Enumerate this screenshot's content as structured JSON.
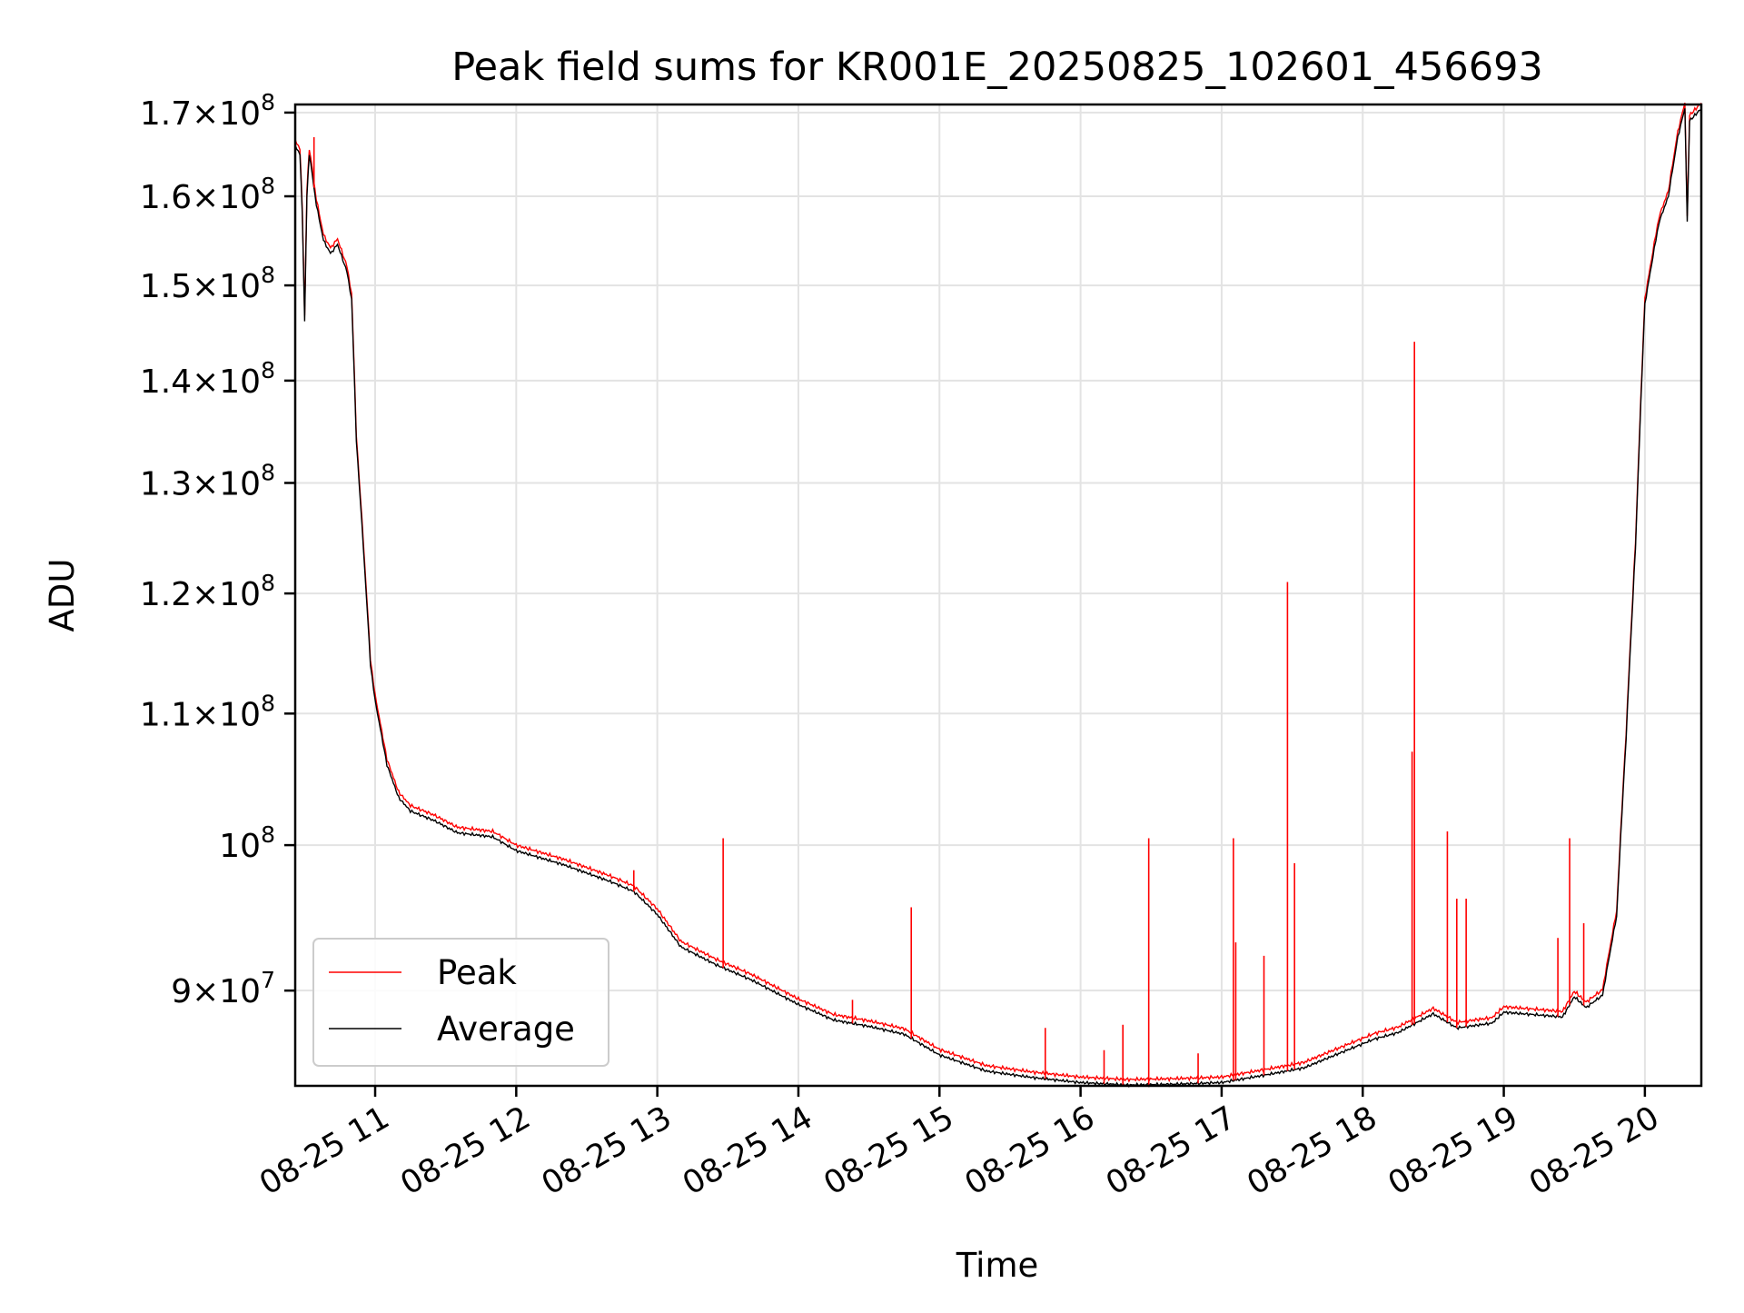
{
  "chart_data": {
    "type": "line",
    "title": "Peak field sums for KR001E_20250825_102601_456693",
    "xlabel": "Time",
    "ylabel": "ADU",
    "yscale": "log",
    "ylim": [
      84000000.0,
      171000000.0
    ],
    "xlim": [
      "2025-08-25 10:26",
      "2025-08-25 20:24"
    ],
    "grid": true,
    "legend_position": "lower-left",
    "x_ticks": [
      {
        "t": "2025-08-25 11:00",
        "label": "08-25 11"
      },
      {
        "t": "2025-08-25 12:00",
        "label": "08-25 12"
      },
      {
        "t": "2025-08-25 13:00",
        "label": "08-25 13"
      },
      {
        "t": "2025-08-25 14:00",
        "label": "08-25 14"
      },
      {
        "t": "2025-08-25 15:00",
        "label": "08-25 15"
      },
      {
        "t": "2025-08-25 16:00",
        "label": "08-25 16"
      },
      {
        "t": "2025-08-25 17:00",
        "label": "08-25 17"
      },
      {
        "t": "2025-08-25 18:00",
        "label": "08-25 18"
      },
      {
        "t": "2025-08-25 19:00",
        "label": "08-25 19"
      },
      {
        "t": "2025-08-25 20:00",
        "label": "08-25 20"
      }
    ],
    "y_ticks": [
      {
        "value": 90000000.0,
        "mantissa": "9",
        "exponent": "7"
      },
      {
        "value": 100000000.0,
        "mantissa": "",
        "exponent": "8"
      },
      {
        "value": 110000000.0,
        "mantissa": "1.1",
        "exponent": "8"
      },
      {
        "value": 120000000.0,
        "mantissa": "1.2",
        "exponent": "8"
      },
      {
        "value": 130000000.0,
        "mantissa": "1.3",
        "exponent": "8"
      },
      {
        "value": 140000000.0,
        "mantissa": "1.4",
        "exponent": "8"
      },
      {
        "value": 150000000.0,
        "mantissa": "1.5",
        "exponent": "8"
      },
      {
        "value": 160000000.0,
        "mantissa": "1.6",
        "exponent": "8"
      },
      {
        "value": 170000000.0,
        "mantissa": "1.7",
        "exponent": "8"
      }
    ],
    "series": [
      {
        "name": "Average",
        "color": "#000000",
        "points": [
          [
            "2025-08-25 10:26",
            166000000
          ],
          [
            "2025-08-25 10:28",
            165000000
          ],
          [
            "2025-08-25 10:29",
            158000000
          ],
          [
            "2025-08-25 10:30",
            146000000
          ],
          [
            "2025-08-25 10:31",
            160000000
          ],
          [
            "2025-08-25 10:32",
            165000000
          ],
          [
            "2025-08-25 10:35",
            159000000
          ],
          [
            "2025-08-25 10:38",
            155000000
          ],
          [
            "2025-08-25 10:41",
            153500000
          ],
          [
            "2025-08-25 10:44",
            154500000
          ],
          [
            "2025-08-25 10:48",
            151500000
          ],
          [
            "2025-08-25 10:50",
            148500000
          ],
          [
            "2025-08-25 10:52",
            134000000
          ],
          [
            "2025-08-25 10:55",
            124000000
          ],
          [
            "2025-08-25 10:58",
            114000000
          ],
          [
            "2025-08-25 11:00",
            111000000
          ],
          [
            "2025-08-25 11:05",
            106000000
          ],
          [
            "2025-08-25 11:10",
            103500000
          ],
          [
            "2025-08-25 11:15",
            102500000
          ],
          [
            "2025-08-25 11:25",
            101800000
          ],
          [
            "2025-08-25 11:35",
            100900000
          ],
          [
            "2025-08-25 11:50",
            100600000
          ],
          [
            "2025-08-25 12:00",
            99600000
          ],
          [
            "2025-08-25 12:20",
            98600000
          ],
          [
            "2025-08-25 12:40",
            97400000
          ],
          [
            "2025-08-25 12:50",
            96700000
          ],
          [
            "2025-08-25 13:00",
            95100000
          ],
          [
            "2025-08-25 13:10",
            92900000
          ],
          [
            "2025-08-25 13:25",
            91700000
          ],
          [
            "2025-08-25 13:40",
            90700000
          ],
          [
            "2025-08-25 14:00",
            89100000
          ],
          [
            "2025-08-25 14:15",
            88100000
          ],
          [
            "2025-08-25 14:30",
            87700000
          ],
          [
            "2025-08-25 14:45",
            87200000
          ],
          [
            "2025-08-25 15:00",
            85900000
          ],
          [
            "2025-08-25 15:20",
            84900000
          ],
          [
            "2025-08-25 15:40",
            84500000
          ],
          [
            "2025-08-25 16:00",
            84200000
          ],
          [
            "2025-08-25 16:20",
            84050000
          ],
          [
            "2025-08-25 16:40",
            84100000
          ],
          [
            "2025-08-25 17:00",
            84200000
          ],
          [
            "2025-08-25 17:20",
            84700000
          ],
          [
            "2025-08-25 17:35",
            85100000
          ],
          [
            "2025-08-25 17:45",
            85700000
          ],
          [
            "2025-08-25 17:55",
            86300000
          ],
          [
            "2025-08-25 18:05",
            86900000
          ],
          [
            "2025-08-25 18:15",
            87300000
          ],
          [
            "2025-08-25 18:30",
            88500000
          ],
          [
            "2025-08-25 18:40",
            87600000
          ],
          [
            "2025-08-25 18:55",
            87900000
          ],
          [
            "2025-08-25 19:00",
            88600000
          ],
          [
            "2025-08-25 19:25",
            88300000
          ],
          [
            "2025-08-25 19:30",
            89600000
          ],
          [
            "2025-08-25 19:35",
            88900000
          ],
          [
            "2025-08-25 19:42",
            89700000
          ],
          [
            "2025-08-25 19:48",
            95000000
          ],
          [
            "2025-08-25 19:52",
            108000000
          ],
          [
            "2025-08-25 19:56",
            124000000
          ],
          [
            "2025-08-25 20:00",
            148000000
          ],
          [
            "2025-08-25 20:04",
            154000000
          ],
          [
            "2025-08-25 20:06",
            157000000
          ],
          [
            "2025-08-25 20:10",
            160000000
          ],
          [
            "2025-08-25 20:14",
            167000000
          ],
          [
            "2025-08-25 20:17",
            170500000
          ],
          [
            "2025-08-25 20:18",
            157000000
          ],
          [
            "2025-08-25 20:19",
            169000000
          ],
          [
            "2025-08-25 20:24",
            170500000
          ]
        ]
      },
      {
        "name": "Peak",
        "color": "#ff0000",
        "spikes": [
          [
            "2025-08-25 10:34",
            167000000
          ],
          [
            "2025-08-25 12:50",
            98200000
          ],
          [
            "2025-08-25 13:28",
            100500000
          ],
          [
            "2025-08-25 14:23",
            89400000
          ],
          [
            "2025-08-25 14:48",
            95600000
          ],
          [
            "2025-08-25 15:45",
            87600000
          ],
          [
            "2025-08-25 16:10",
            86200000
          ],
          [
            "2025-08-25 16:18",
            87800000
          ],
          [
            "2025-08-25 16:29",
            100500000
          ],
          [
            "2025-08-25 16:50",
            86000000
          ],
          [
            "2025-08-25 17:05",
            100500000
          ],
          [
            "2025-08-25 17:06",
            93200000
          ],
          [
            "2025-08-25 17:18",
            92300000
          ],
          [
            "2025-08-25 17:28",
            121000000
          ],
          [
            "2025-08-25 17:31",
            98700000
          ],
          [
            "2025-08-25 18:22",
            144000000
          ],
          [
            "2025-08-25 18:21",
            107000000
          ],
          [
            "2025-08-25 18:36",
            101000000
          ],
          [
            "2025-08-25 18:40",
            96200000
          ],
          [
            "2025-08-25 18:44",
            96200000
          ],
          [
            "2025-08-25 19:23",
            93500000
          ],
          [
            "2025-08-25 19:28",
            100500000
          ],
          [
            "2025-08-25 19:34",
            94500000
          ]
        ]
      }
    ]
  }
}
